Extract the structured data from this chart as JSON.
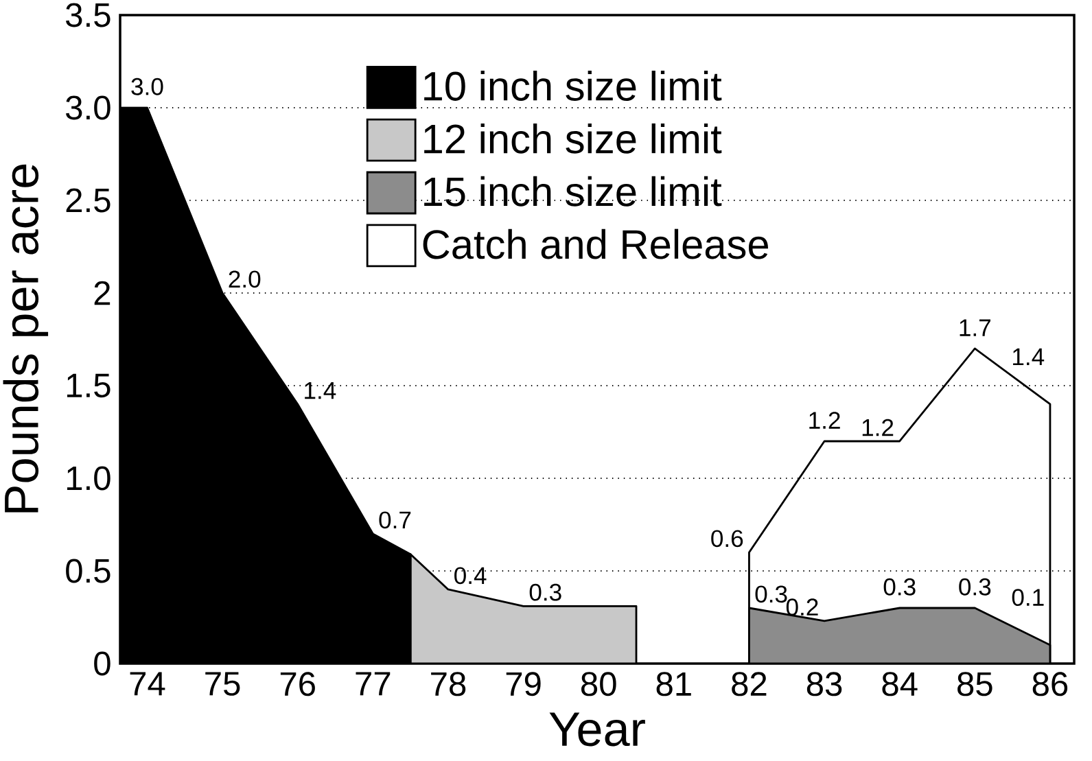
{
  "chart_data": {
    "type": "area",
    "xlabel": "Year",
    "ylabel": "Pounds per acre",
    "xlim": [
      73.64,
      86.32
    ],
    "xticks": [
      74,
      75,
      76,
      77,
      78,
      79,
      80,
      81,
      82,
      83,
      84,
      85,
      86
    ],
    "ylim": [
      0,
      3.5
    ],
    "yticks": [
      0,
      {
        "value": 0.5,
        "label": "0.5"
      },
      {
        "value": 1,
        "label": "1.0"
      },
      1.5,
      2,
      2.5,
      {
        "value": 3,
        "label": "3.0"
      },
      3.5
    ],
    "grid": "y",
    "legend": "top",
    "series": [
      {
        "name": "10 inch size limit",
        "color": "#000000",
        "x": [
          73.64,
          74,
          75,
          76,
          77,
          77.5
        ],
        "values": [
          3.0,
          3.0,
          2.0,
          1.4,
          0.7,
          0.59
        ],
        "value_labels": [
          null,
          "3.0",
          "2.0",
          "1.4",
          "0.7",
          null
        ]
      },
      {
        "name": "12 inch size limit",
        "color": "#c8c8c8",
        "x": [
          77.5,
          78,
          79,
          80,
          80.5
        ],
        "values": [
          0.59,
          0.4,
          0.31,
          0.31,
          0.31
        ],
        "value_labels": [
          null,
          "0.4",
          "0.3",
          null,
          null
        ]
      },
      {
        "name": "15 inch size limit",
        "color": "#8c8c8c",
        "x": [
          82,
          83,
          84,
          85,
          86
        ],
        "values": [
          0.3,
          0.23,
          0.3,
          0.3,
          0.1
        ],
        "value_labels": [
          "0.3",
          "0.2",
          "0.3",
          "0.3",
          "0.1"
        ]
      },
      {
        "name": "Catch and Release",
        "type": "line",
        "color": "#000000",
        "x": [
          82,
          82,
          83,
          84,
          85,
          86,
          86
        ],
        "values": [
          0,
          0.6,
          1.2,
          1.2,
          1.7,
          1.4,
          0
        ],
        "value_labels": [
          null,
          "0.6",
          "1.2",
          "1.2",
          "1.7",
          "1.4",
          null
        ]
      }
    ]
  }
}
